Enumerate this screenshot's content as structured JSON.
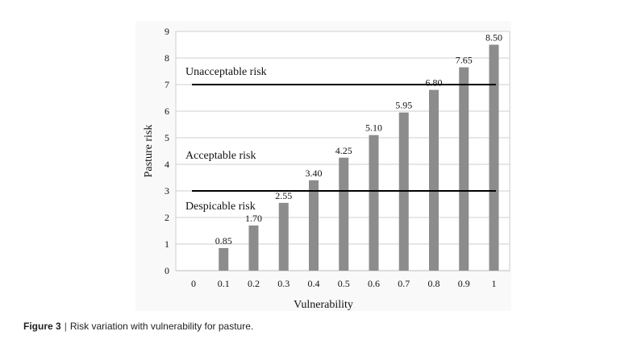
{
  "chart_data": {
    "type": "bar",
    "title": "",
    "xlabel": "Vulnerability",
    "ylabel": "Pasture risk",
    "categories": [
      "0",
      "0.1",
      "0.2",
      "0.3",
      "0.4",
      "0.5",
      "0.6",
      "0.7",
      "0.8",
      "0.9",
      "1"
    ],
    "x": [
      0,
      0.1,
      0.2,
      0.3,
      0.4,
      0.5,
      0.6,
      0.7,
      0.8,
      0.9,
      1
    ],
    "values": [
      0,
      0.85,
      1.7,
      2.55,
      3.4,
      4.25,
      5.1,
      5.95,
      6.8,
      7.65,
      8.5
    ],
    "data_labels": [
      "",
      "0.85",
      "1.70",
      "2.55",
      "3.40",
      "4.25",
      "5.10",
      "5.95",
      "6.80",
      "7.65",
      "8.50"
    ],
    "ylim": [
      0,
      9
    ],
    "yticks": [
      "0",
      "1",
      "2",
      "3",
      "4",
      "5",
      "6",
      "7",
      "8",
      "9"
    ],
    "grid": true,
    "bar_color": "#8c8c8c",
    "threshold_lines": [
      {
        "value": 7,
        "label": "Unacceptable risk",
        "label_position": "above"
      },
      {
        "value": 3,
        "label": "Acceptable risk",
        "label_position": "above-band"
      },
      {
        "value": 3,
        "label": "Despicable risk",
        "label_position": "below"
      }
    ]
  },
  "caption": {
    "figure_label": "Figure 3",
    "separator": "|",
    "text": "Risk variation with vulnerability for pasture."
  }
}
